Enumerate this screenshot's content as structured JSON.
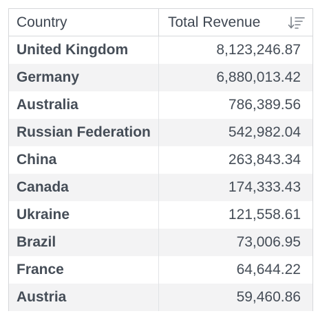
{
  "table": {
    "columns": {
      "country": "Country",
      "revenue": "Total Revenue"
    },
    "sort_icon": "sort-descending-icon",
    "rows": [
      {
        "country": "United Kingdom",
        "revenue": "8,123,246.87"
      },
      {
        "country": "Germany",
        "revenue": "6,880,013.42"
      },
      {
        "country": "Australia",
        "revenue": "786,389.56"
      },
      {
        "country": "Russian Federation",
        "revenue": "542,982.04"
      },
      {
        "country": "China",
        "revenue": "263,843.34"
      },
      {
        "country": "Canada",
        "revenue": "174,333.43"
      },
      {
        "country": "Ukraine",
        "revenue": "121,558.61"
      },
      {
        "country": "Brazil",
        "revenue": "73,006.95"
      },
      {
        "country": "France",
        "revenue": "64,644.22"
      },
      {
        "country": "Austria",
        "revenue": "59,460.86"
      }
    ]
  },
  "colors": {
    "border": "#d5d7da",
    "stripe": "#f3f3f4",
    "text": "#454d57"
  }
}
